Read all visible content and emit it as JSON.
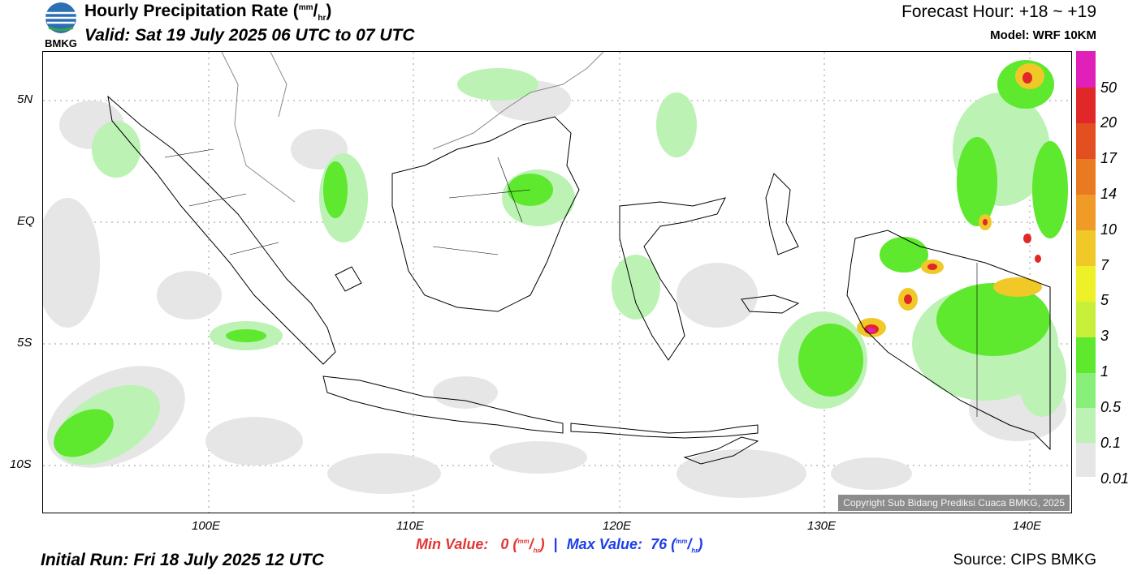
{
  "header": {
    "logo_text": "BMKG",
    "title_main": "Hourly Precipitation Rate (",
    "title_unit_sup": "mm",
    "title_unit_sep": "/",
    "title_unit_sub": "hr",
    "title_close": ")",
    "valid": "Valid: Sat 19 July 2025 06 UTC to 07 UTC",
    "forecast_hour": "Forecast Hour: +18 ~ +19",
    "model": "Model: WRF 10KM"
  },
  "map": {
    "lat_labels": [
      "5N",
      "EQ",
      "5S",
      "10S"
    ],
    "lon_labels": [
      "100E",
      "110E",
      "120E",
      "130E",
      "140E"
    ],
    "copyright": "Copyright Sub Bidang Prediksi Cuaca BMKG, 2025"
  },
  "legend": {
    "labels": [
      "50",
      "20",
      "17",
      "14",
      "10",
      "7",
      "5",
      "3",
      "1",
      "0.5",
      "0.1",
      "0.01"
    ],
    "colors": [
      "#e020b8",
      "#e02828",
      "#e25022",
      "#ea7a22",
      "#f09a28",
      "#f0c828",
      "#eef028",
      "#c8ef3a",
      "#5ee82e",
      "#88f07a",
      "#bcf2b4",
      "#e6e6e6"
    ]
  },
  "footer": {
    "min_label": "Min Value:",
    "min_value": "0",
    "max_label": "Max Value:",
    "max_value": "76",
    "unit_sup": "mm",
    "unit_sub": "hr",
    "separator": "|",
    "initial_run": "Initial Run: Fri 18 July 2025 12 UTC",
    "source": "Source: CIPS BMKG"
  }
}
